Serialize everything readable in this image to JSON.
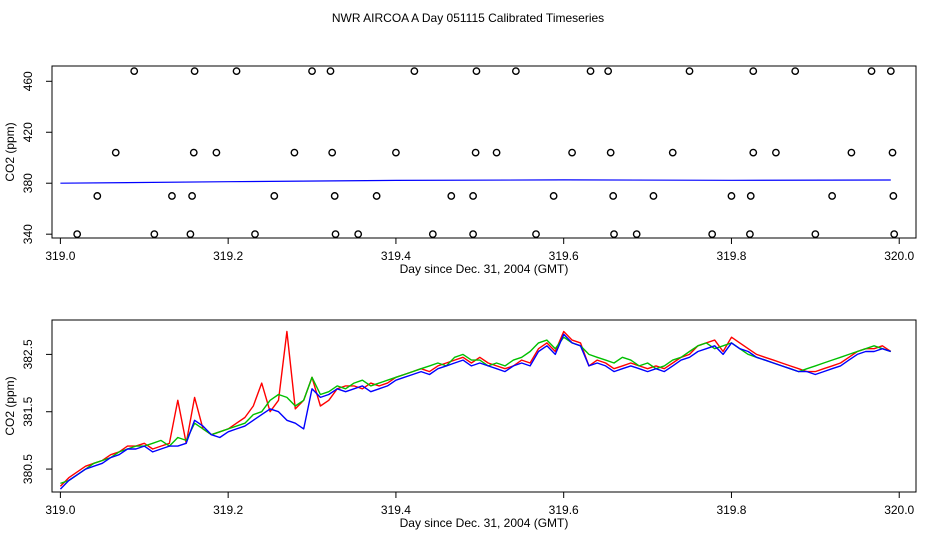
{
  "title": "NWR AIRCOA A  Day 051115  Calibrated Timeseries",
  "chart_data": [
    {
      "type": "scatter",
      "xlabel": "Day since Dec. 31, 2004 (GMT)",
      "ylabel": "CO2 (ppm)",
      "xlim": [
        318.99,
        320.02
      ],
      "ylim": [
        337,
        472
      ],
      "xticks": [
        "319.0",
        "319.2",
        "319.4",
        "319.6",
        "319.8",
        "320.0"
      ],
      "yticks": [
        "340",
        "380",
        "420",
        "460"
      ],
      "point_series": {
        "marker": "open-circle",
        "x": [
          319.088,
          319.16,
          319.21,
          319.3,
          319.322,
          319.422,
          319.496,
          319.543,
          319.632,
          319.653,
          319.75,
          319.826,
          319.876,
          319.967,
          319.99,
          319.066,
          319.159,
          319.186,
          319.279,
          319.324,
          319.4,
          319.495,
          319.52,
          319.61,
          319.656,
          319.73,
          319.826,
          319.853,
          319.943,
          319.992,
          319.044,
          319.133,
          319.157,
          319.255,
          319.327,
          319.377,
          319.466,
          319.492,
          319.588,
          319.659,
          319.707,
          319.8,
          319.823,
          319.92,
          319.993,
          319.02,
          319.112,
          319.155,
          319.232,
          319.328,
          319.355,
          319.444,
          319.492,
          319.567,
          319.66,
          319.687,
          319.777,
          319.822,
          319.9,
          319.994
        ],
        "y": [
          468,
          468,
          468,
          468,
          468,
          468,
          468,
          468,
          468,
          468,
          468,
          468,
          468,
          468,
          468,
          404,
          404,
          404,
          404,
          404,
          404,
          404,
          404,
          404,
          404,
          404,
          404,
          404,
          404,
          404,
          370,
          370,
          370,
          370,
          370,
          370,
          370,
          370,
          370,
          370,
          370,
          370,
          370,
          370,
          370,
          340,
          340,
          340,
          340,
          340,
          340,
          340,
          340,
          340,
          340,
          340,
          340,
          340,
          340,
          340
        ]
      },
      "line_series": [
        {
          "color": "#0000ff",
          "x": [
            319.0,
            319.2,
            319.4,
            319.6,
            319.8,
            319.99
          ],
          "y": [
            380.0,
            381.2,
            382.2,
            382.6,
            382.3,
            382.5
          ]
        }
      ]
    },
    {
      "type": "line",
      "xlabel": "Day since Dec. 31, 2004 (GMT)",
      "ylabel": "CO2 (ppm)",
      "xlim": [
        318.99,
        320.02
      ],
      "ylim": [
        380.1,
        383.1
      ],
      "xticks": [
        "319.0",
        "319.2",
        "319.4",
        "319.6",
        "319.8",
        "320.0"
      ],
      "yticks": [
        "380.5",
        "381.5",
        "382.5"
      ],
      "colors": {
        "red": "#ff0000",
        "green": "#00c000",
        "blue": "#0000ff"
      },
      "x": [
        319.0,
        319.01,
        319.02,
        319.03,
        319.04,
        319.05,
        319.06,
        319.07,
        319.08,
        319.09,
        319.1,
        319.11,
        319.12,
        319.13,
        319.14,
        319.15,
        319.16,
        319.17,
        319.18,
        319.19,
        319.2,
        319.21,
        319.22,
        319.23,
        319.24,
        319.25,
        319.26,
        319.27,
        319.28,
        319.29,
        319.3,
        319.31,
        319.32,
        319.33,
        319.34,
        319.35,
        319.36,
        319.37,
        319.38,
        319.39,
        319.4,
        319.41,
        319.42,
        319.43,
        319.44,
        319.45,
        319.46,
        319.47,
        319.48,
        319.49,
        319.5,
        319.51,
        319.52,
        319.53,
        319.54,
        319.55,
        319.56,
        319.57,
        319.58,
        319.59,
        319.6,
        319.61,
        319.62,
        319.63,
        319.64,
        319.65,
        319.66,
        319.67,
        319.68,
        319.69,
        319.7,
        319.71,
        319.72,
        319.73,
        319.74,
        319.75,
        319.76,
        319.77,
        319.78,
        319.79,
        319.8,
        319.81,
        319.82,
        319.83,
        319.84,
        319.85,
        319.86,
        319.87,
        319.88,
        319.89,
        319.9,
        319.91,
        319.92,
        319.93,
        319.94,
        319.95,
        319.96,
        319.97,
        319.98,
        319.99
      ],
      "series": [
        {
          "color": "#ff0000",
          "y": [
            380.2,
            380.35,
            380.45,
            380.55,
            380.6,
            380.65,
            380.75,
            380.8,
            380.9,
            380.9,
            380.95,
            380.85,
            380.9,
            380.95,
            381.7,
            380.95,
            381.75,
            381.2,
            381.1,
            381.15,
            381.2,
            381.3,
            381.4,
            381.6,
            382.0,
            381.5,
            381.7,
            382.9,
            381.55,
            381.7,
            382.1,
            381.6,
            381.7,
            381.9,
            381.95,
            381.95,
            381.9,
            382.0,
            381.95,
            382.0,
            382.1,
            382.15,
            382.2,
            382.25,
            382.2,
            382.3,
            382.35,
            382.4,
            382.45,
            382.35,
            382.45,
            382.35,
            382.3,
            382.25,
            382.3,
            382.4,
            382.35,
            382.6,
            382.7,
            382.55,
            382.9,
            382.75,
            382.7,
            382.3,
            382.4,
            382.35,
            382.25,
            382.3,
            382.35,
            382.3,
            382.25,
            382.3,
            382.25,
            382.35,
            382.45,
            382.5,
            382.65,
            382.7,
            382.75,
            382.55,
            382.8,
            382.7,
            382.6,
            382.5,
            382.45,
            382.4,
            382.35,
            382.3,
            382.25,
            382.2,
            382.2,
            382.25,
            382.3,
            382.35,
            382.45,
            382.55,
            382.6,
            382.6,
            382.65,
            382.55
          ]
        },
        {
          "color": "#00c000",
          "y": [
            380.25,
            380.3,
            380.4,
            380.5,
            380.6,
            380.65,
            380.7,
            380.8,
            380.85,
            380.9,
            380.9,
            380.95,
            381.0,
            380.9,
            381.05,
            381.0,
            381.3,
            381.2,
            381.1,
            381.15,
            381.2,
            381.25,
            381.3,
            381.45,
            381.5,
            381.7,
            381.8,
            381.75,
            381.6,
            381.7,
            382.1,
            381.8,
            381.85,
            381.95,
            381.9,
            382.0,
            382.05,
            381.95,
            382.0,
            382.05,
            382.1,
            382.15,
            382.2,
            382.25,
            382.3,
            382.35,
            382.3,
            382.45,
            382.5,
            382.4,
            382.4,
            382.3,
            382.35,
            382.3,
            382.4,
            382.45,
            382.55,
            382.7,
            382.75,
            382.6,
            382.8,
            382.7,
            382.65,
            382.5,
            382.45,
            382.4,
            382.35,
            382.45,
            382.4,
            382.3,
            382.35,
            382.25,
            382.3,
            382.4,
            382.45,
            382.55,
            382.65,
            382.7,
            382.6,
            382.65,
            382.7,
            382.6,
            382.5,
            382.45,
            382.4,
            382.35,
            382.3,
            382.25,
            382.2,
            382.25,
            382.3,
            382.35,
            382.4,
            382.45,
            382.5,
            382.55,
            382.6,
            382.65,
            382.6,
            382.55
          ]
        },
        {
          "color": "#0000ff",
          "y": [
            380.15,
            380.3,
            380.4,
            380.5,
            380.55,
            380.6,
            380.7,
            380.75,
            380.85,
            380.85,
            380.9,
            380.8,
            380.85,
            380.9,
            380.9,
            380.95,
            381.35,
            381.25,
            381.1,
            381.05,
            381.15,
            381.2,
            381.25,
            381.35,
            381.45,
            381.55,
            381.5,
            381.35,
            381.3,
            381.2,
            381.9,
            381.75,
            381.8,
            381.9,
            381.85,
            381.9,
            381.95,
            381.85,
            381.9,
            381.95,
            382.05,
            382.1,
            382.15,
            382.2,
            382.15,
            382.25,
            382.3,
            382.35,
            382.4,
            382.3,
            382.35,
            382.3,
            382.25,
            382.2,
            382.3,
            382.35,
            382.3,
            382.55,
            382.65,
            382.5,
            382.85,
            382.7,
            382.65,
            382.3,
            382.35,
            382.3,
            382.2,
            382.25,
            382.3,
            382.25,
            382.2,
            382.25,
            382.2,
            382.3,
            382.4,
            382.45,
            382.55,
            382.6,
            382.65,
            382.5,
            382.7,
            382.6,
            382.55,
            382.45,
            382.4,
            382.35,
            382.3,
            382.25,
            382.2,
            382.2,
            382.15,
            382.2,
            382.25,
            382.3,
            382.4,
            382.5,
            382.55,
            382.55,
            382.6,
            382.55
          ]
        }
      ]
    }
  ]
}
